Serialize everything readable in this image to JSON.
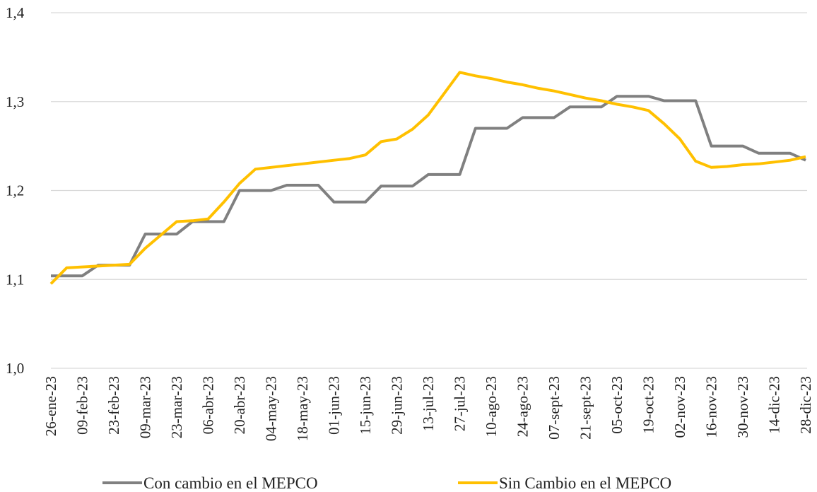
{
  "chart_data": {
    "type": "line",
    "categories": [
      "26-ene-23",
      null,
      "09-feb-23",
      null,
      "23-feb-23",
      null,
      "09-mar-23",
      null,
      "23-mar-23",
      null,
      "06-abr-23",
      null,
      "20-abr-23",
      null,
      "04-may-23",
      null,
      "18-may-23",
      null,
      "01-jun-23",
      null,
      "15-jun-23",
      null,
      "29-jun-23",
      null,
      "13-jul-23",
      null,
      "27-jul-23",
      null,
      "10-ago-23",
      null,
      "24-ago-23",
      null,
      "07-sept-23",
      null,
      "21-sept-23",
      null,
      "05-oct-23",
      null,
      "19-oct-23",
      null,
      "02-nov-23",
      null,
      "16-nov-23",
      null,
      "30-nov-23",
      null,
      "14-dic-23",
      null,
      "28-dic-23"
    ],
    "series": [
      {
        "name": "Con cambio en el MEPCO",
        "color": "#808080",
        "values": [
          1.104,
          1.104,
          1.104,
          1.116,
          1.116,
          1.116,
          1.151,
          1.151,
          1.151,
          1.165,
          1.165,
          1.165,
          1.2,
          1.2,
          1.2,
          1.206,
          1.206,
          1.206,
          1.187,
          1.187,
          1.187,
          1.205,
          1.205,
          1.205,
          1.218,
          1.218,
          1.218,
          1.27,
          1.27,
          1.27,
          1.282,
          1.282,
          1.282,
          1.294,
          1.294,
          1.294,
          1.306,
          1.306,
          1.306,
          1.301,
          1.301,
          1.301,
          1.25,
          1.25,
          1.25,
          1.242,
          1.242,
          1.242,
          1.234
        ]
      },
      {
        "name": "Sin Cambio en el MEPCO",
        "color": "#ffc000",
        "values": [
          1.095,
          1.113,
          1.114,
          1.115,
          1.116,
          1.117,
          1.135,
          1.15,
          1.165,
          1.166,
          1.168,
          1.187,
          1.208,
          1.224,
          1.226,
          1.228,
          1.23,
          1.232,
          1.234,
          1.236,
          1.24,
          1.255,
          1.258,
          1.269,
          1.285,
          1.309,
          1.333,
          1.329,
          1.326,
          1.322,
          1.319,
          1.315,
          1.312,
          1.308,
          1.304,
          1.301,
          1.297,
          1.294,
          1.29,
          1.275,
          1.258,
          1.233,
          1.226,
          1.227,
          1.229,
          1.23,
          1.232,
          1.234,
          1.238
        ]
      }
    ],
    "ylim": [
      1.0,
      1.4
    ],
    "yticks": [
      {
        "value": 1.0,
        "label": "1,0"
      },
      {
        "value": 1.1,
        "label": "1,1"
      },
      {
        "value": 1.2,
        "label": "1,2"
      },
      {
        "value": 1.3,
        "label": "1,3"
      },
      {
        "value": 1.4,
        "label": "1,4"
      }
    ],
    "grid": true,
    "legend": "bottom"
  }
}
